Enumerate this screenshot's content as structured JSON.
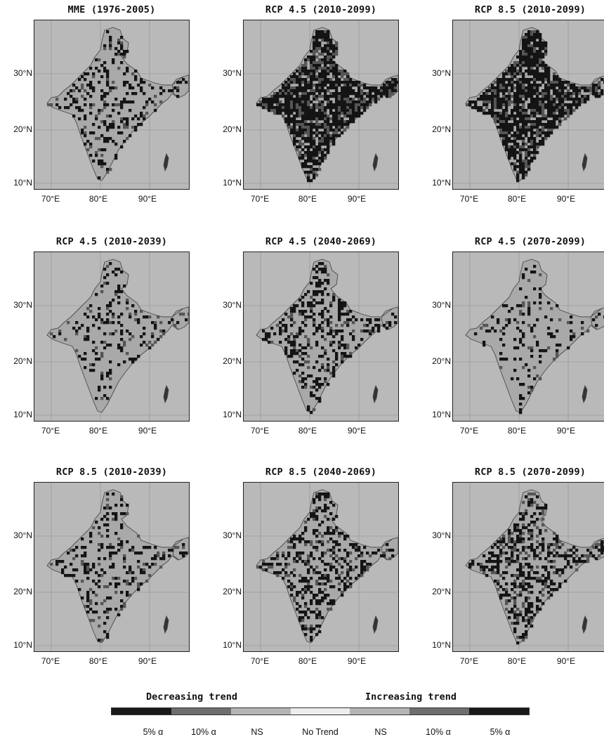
{
  "panels": [
    {
      "title": "MME (1976-2005)",
      "shade": 0.28
    },
    {
      "title": "RCP 4.5 (2010-2099)",
      "shade": 1.0
    },
    {
      "title": "RCP 8.5 (2010-2099)",
      "shade": 1.0
    },
    {
      "title": "RCP 4.5 (2010-2039)",
      "shade": 0.18
    },
    {
      "title": "RCP 4.5 (2040-2069)",
      "shade": 0.34
    },
    {
      "title": "RCP 4.5 (2070-2099)",
      "shade": 0.18
    },
    {
      "title": "RCP 8.5 (2010-2039)",
      "shade": 0.24
    },
    {
      "title": "RCP 8.5 (2040-2069)",
      "shade": 0.42
    },
    {
      "title": "RCP 8.5 (2070-2099)",
      "shade": 0.46
    }
  ],
  "axes": {
    "lat_labels": [
      "30°N",
      "20°N",
      "10°N"
    ],
    "lon_labels": [
      "70°E",
      "80°E",
      "90°E"
    ]
  },
  "legend": {
    "decreasing_label": "Decreasing trend",
    "increasing_label": "Increasing trend",
    "tick_labels": [
      "5% α",
      "10% α",
      "NS",
      "No Trend",
      "NS",
      "10% α",
      "5% α"
    ],
    "colors": [
      "#1a1a1a",
      "#6e6e6e",
      "#b5b5b5",
      "#ededed",
      "#b5b5b5",
      "#6e6e6e",
      "#1a1a1a"
    ]
  },
  "colors": {
    "map_background": "#b9b9b9",
    "land": "#a9a9a9",
    "significant": "#141414",
    "grid": "#8c8c8c"
  }
}
